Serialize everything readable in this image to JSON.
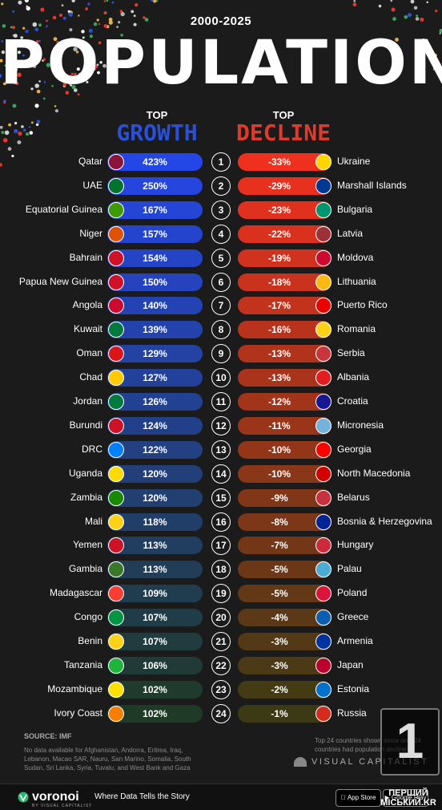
{
  "header": {
    "subtitle": "2000-2025",
    "title": "POPULATION",
    "growth_top": "TOP",
    "growth_big": "GROWTH",
    "decline_top": "TOP",
    "decline_big": "DECLINE"
  },
  "chart_data": {
    "type": "bar",
    "title": "POPULATION",
    "subtitle": "2000-2025",
    "series": [
      {
        "name": "GROWTH",
        "categories": [
          "Qatar",
          "UAE",
          "Equatorial Guinea",
          "Niger",
          "Bahrain",
          "Papua New Guinea",
          "Angola",
          "Kuwait",
          "Oman",
          "Chad",
          "Jordan",
          "Burundi",
          "DRC",
          "Uganda",
          "Zambia",
          "Mali",
          "Yemen",
          "Gambia",
          "Madagascar",
          "Congo",
          "Benin",
          "Tanzania",
          "Mozambique",
          "Ivory Coast"
        ],
        "values": [
          423,
          250,
          167,
          157,
          154,
          150,
          140,
          139,
          129,
          127,
          126,
          124,
          122,
          120,
          120,
          118,
          113,
          113,
          109,
          107,
          107,
          106,
          102,
          102
        ],
        "labels": [
          "423%",
          "250%",
          "167%",
          "157%",
          "154%",
          "150%",
          "140%",
          "139%",
          "129%",
          "127%",
          "126%",
          "124%",
          "122%",
          "120%",
          "120%",
          "118%",
          "113%",
          "113%",
          "109%",
          "107%",
          "107%",
          "106%",
          "102%",
          "102%"
        ]
      },
      {
        "name": "DECLINE",
        "categories": [
          "Ukraine",
          "Marshall Islands",
          "Bulgaria",
          "Latvia",
          "Moldova",
          "Lithuania",
          "Puerto Rico",
          "Romania",
          "Serbia",
          "Albania",
          "Croatia",
          "Micronesia",
          "Georgia",
          "North Macedonia",
          "Belarus",
          "Bosnia & Herzegovina",
          "Hungary",
          "Palau",
          "Poland",
          "Greece",
          "Armenia",
          "Japan",
          "Estonia",
          "Russia"
        ],
        "values": [
          -33,
          -29,
          -23,
          -22,
          -19,
          -18,
          -17,
          -16,
          -13,
          -13,
          -12,
          -11,
          -10,
          -10,
          -9,
          -8,
          -7,
          -5,
          -5,
          -4,
          -3,
          -3,
          -2,
          -1
        ],
        "labels": [
          "-33%",
          "-29%",
          "-23%",
          "-22%",
          "-19%",
          "-18%",
          "-17%",
          "-16%",
          "-13%",
          "-13%",
          "-12%",
          "-11%",
          "-10%",
          "-10%",
          "-9%",
          "-8%",
          "-7%",
          "-5%",
          "-5%",
          "-4%",
          "-3%",
          "-3%",
          "-2%",
          "-1%"
        ]
      }
    ],
    "ranks": [
      "1",
      "2",
      "3",
      "4",
      "5",
      "6",
      "7",
      "8",
      "9",
      "10",
      "11",
      "12",
      "13",
      "14",
      "15",
      "16",
      "17",
      "18",
      "19",
      "20",
      "21",
      "22",
      "23",
      "24"
    ]
  },
  "colors": {
    "growth_start": "#2546e6",
    "growth_end": "#1f3a26",
    "decline_start": "#f0301f",
    "decline_end": "#3c3a14"
  },
  "flag_colors": {
    "growth": [
      "#8a1538",
      "#00732f",
      "#3e9a00",
      "#e05206",
      "#ce1126",
      "#ce1126",
      "#cc092f",
      "#007a3d",
      "#db161b",
      "#fecb00",
      "#007a3d",
      "#ce1126",
      "#007fff",
      "#fcdc04",
      "#198a00",
      "#fcd116",
      "#ce1126",
      "#3a7728",
      "#fc3d32",
      "#009543",
      "#fcd116",
      "#1eb53a",
      "#fce100",
      "#f77f00"
    ],
    "decline": [
      "#ffd500",
      "#003893",
      "#00966e",
      "#9e3039",
      "#cc092f",
      "#fdb913",
      "#ed0000",
      "#fcd116",
      "#c6363c",
      "#e41e20",
      "#171796",
      "#75b2dd",
      "#ff0000",
      "#d20000",
      "#c8313e",
      "#002395",
      "#cd2a3e",
      "#4aadd6",
      "#dc143c",
      "#0d5eaf",
      "#0033a0",
      "#bc002d",
      "#0072ce",
      "#d52b1e"
    ]
  },
  "footer": {
    "source": "SOURCE: IMF",
    "notes": "No data available for Afghanistan, Andorra, Eritrea, Iraq, Lebanon, Macao SAR, Nauru, San Marino, Somalia, South Sudan, Sri Lanka, Syria, Tuvalu, and West Bank and Gaza",
    "side_note": "Top 24 countries shown since only 24 countries had population decline",
    "vc_brand": "VISUAL CAPITALIST",
    "voronoi": "voronoi",
    "voronoi_sub": "BY VISUAL CAPITALIST",
    "tagline": "Where Data Tells the Story",
    "appstore": "App Store",
    "gplay": "Google Play",
    "corner_digit": "1",
    "watermark": "ПЕРШИЙ МІСЬКИЙ.KR"
  }
}
